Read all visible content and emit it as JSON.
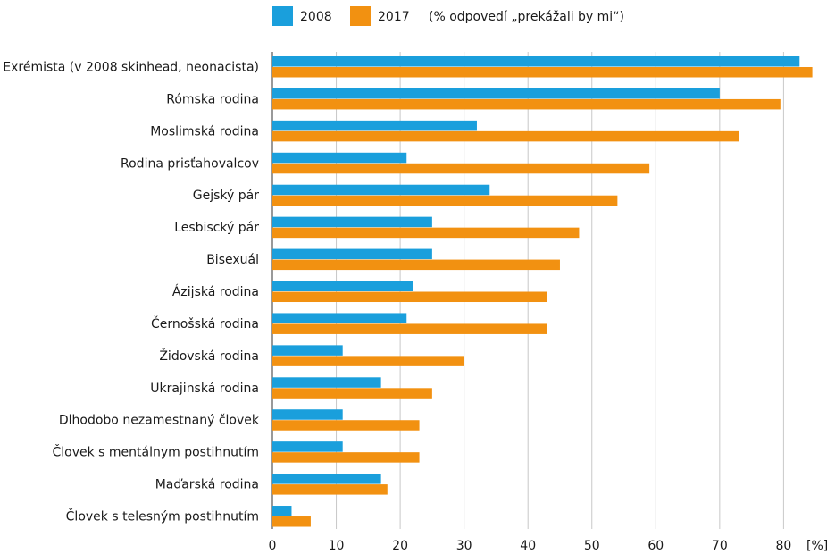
{
  "chart_data": {
    "type": "bar",
    "orientation": "horizontal",
    "title": "",
    "xlabel": "",
    "ylabel": "",
    "unit_label": "[%]",
    "legend_note": "(% odpovedí „prekážali by mi“)",
    "legend_position": "top",
    "grid": true,
    "xlim": [
      0,
      85
    ],
    "x_ticks": [
      0,
      10,
      20,
      30,
      40,
      50,
      60,
      70,
      80
    ],
    "categories": [
      "Exrémista (v 2008 skinhead, neonacista)",
      "Rómska rodina",
      "Moslimská rodina",
      "Rodina prisťahovalcov",
      "Gejský pár",
      "Lesbiscký pár",
      "Bisexuál",
      "Ázijská rodina",
      "Černošská rodina",
      "Židovská rodina",
      "Ukrajinská rodina",
      "Dlhodobo nezamestnaný človek",
      "Človek s mentálnym postihnutím",
      "Maďarská rodina",
      "Človek s telesným postihnutím"
    ],
    "series": [
      {
        "name": "2008",
        "color": "#1a9fdc",
        "values": [
          82.5,
          70,
          32,
          21,
          34,
          25,
          25,
          22,
          21,
          11,
          17,
          11,
          11,
          17,
          3
        ]
      },
      {
        "name": "2017",
        "color": "#f29111",
        "values": [
          84.5,
          79.5,
          73,
          59,
          54,
          48,
          45,
          43,
          43,
          30,
          25,
          23,
          23,
          18,
          6
        ]
      }
    ]
  }
}
